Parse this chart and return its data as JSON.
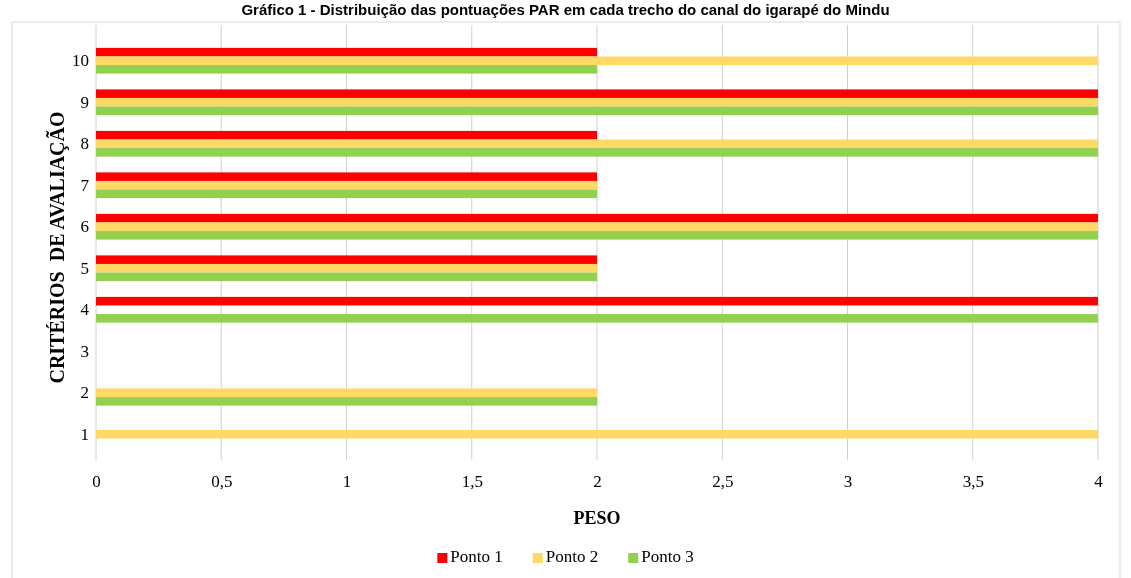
{
  "chart_data": {
    "type": "bar",
    "orientation": "horizontal",
    "title": "Gráfico 1 - Distribuição das pontuações PAR em cada trecho do canal do igarapé do Mindu",
    "xlabel": "PESO",
    "ylabel": "CRITÉRIOS  DE AVALIAÇÃO",
    "categories": [
      "10",
      "9",
      "8",
      "7",
      "6",
      "5",
      "4",
      "3",
      "2",
      "1"
    ],
    "series": [
      {
        "name": "Ponto 1",
        "color": "#ff0000",
        "values": [
          2,
          4,
          2,
          2,
          4,
          2,
          4,
          0,
          0,
          0
        ]
      },
      {
        "name": "Ponto 2",
        "color": "#ffd966",
        "values": [
          4,
          4,
          4,
          2,
          4,
          2,
          0,
          0,
          2,
          4
        ]
      },
      {
        "name": "Ponto 3",
        "color": "#92d050",
        "values": [
          2,
          4,
          4,
          2,
          4,
          2,
          4,
          0,
          2,
          0
        ]
      }
    ],
    "xlim": [
      0,
      4
    ],
    "xticks": [
      0,
      {
        "value": 0.5,
        "label": "0,5"
      },
      1,
      {
        "value": 1.5,
        "label": "1,5"
      },
      2,
      {
        "value": 2.5,
        "label": "2,5"
      },
      3,
      {
        "value": 3.5,
        "label": "3,5"
      },
      4
    ],
    "grid": "x",
    "legend": "bottom"
  }
}
